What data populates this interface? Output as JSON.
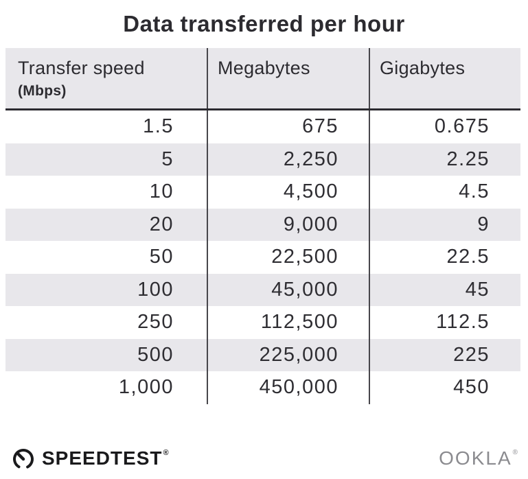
{
  "title": "Data transferred per hour",
  "table": {
    "columns": [
      {
        "label": "Transfer speed",
        "sublabel": "(Mbps)"
      },
      {
        "label": "Megabytes"
      },
      {
        "label": "Gigabytes"
      }
    ],
    "rows": [
      [
        "1.5",
        "675",
        "0.675"
      ],
      [
        "5",
        "2,250",
        "2.25"
      ],
      [
        "10",
        "4,500",
        "4.5"
      ],
      [
        "20",
        "9,000",
        "9"
      ],
      [
        "50",
        "22,500",
        "22.5"
      ],
      [
        "100",
        "45,000",
        "45"
      ],
      [
        "250",
        "112,500",
        "112.5"
      ],
      [
        "500",
        "225,000",
        "225"
      ],
      [
        "1,000",
        "450,000",
        "450"
      ]
    ]
  },
  "footer": {
    "brand": "SPEEDTEST",
    "brand_trademark": "®",
    "attribution": "OOKLA",
    "attribution_trademark": "®"
  },
  "colors": {
    "background": "#ffffff",
    "row_shade": "#e8e7eb",
    "text_dark": "#2c2b30",
    "divider": "#47464b",
    "brand_black": "#1a1a1c",
    "ookla_gray": "#8b8b8f"
  },
  "chart_data": {
    "type": "table",
    "title": "Data transferred per hour",
    "columns": [
      "Transfer speed (Mbps)",
      "Megabytes",
      "Gigabytes"
    ],
    "rows": [
      [
        1.5,
        675,
        0.675
      ],
      [
        5,
        2250,
        2.25
      ],
      [
        10,
        4500,
        4.5
      ],
      [
        20,
        9000,
        9
      ],
      [
        50,
        22500,
        22.5
      ],
      [
        100,
        45000,
        45
      ],
      [
        250,
        112500,
        112.5
      ],
      [
        500,
        225000,
        225
      ],
      [
        1000,
        450000,
        450
      ]
    ],
    "layout": {
      "striped_rows": true,
      "stripe_start": "second_row",
      "column_dividers": true,
      "header_underline": true
    }
  }
}
